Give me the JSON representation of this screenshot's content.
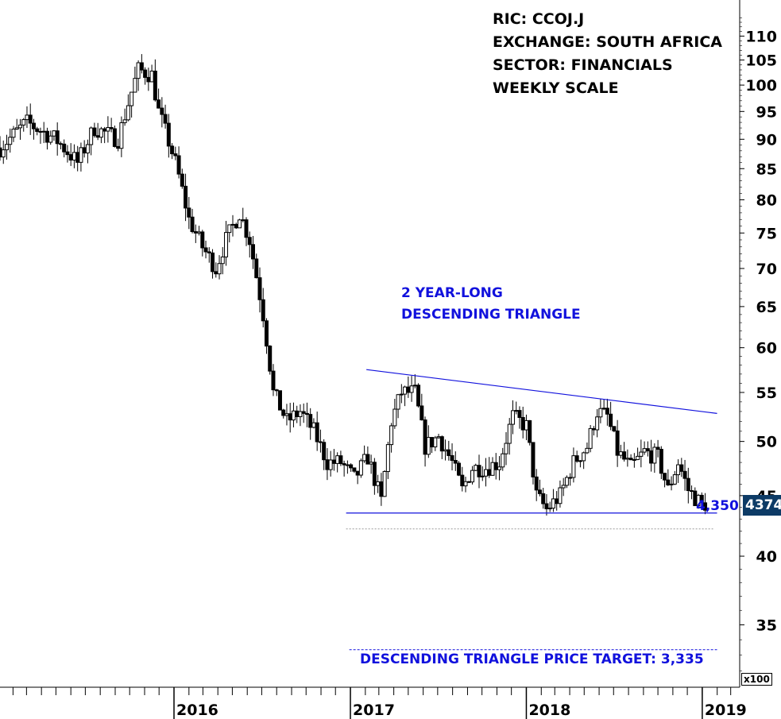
{
  "info": {
    "ric": "RIC: CCOJ.J",
    "exchange": "EXCHANGE: SOUTH AFRICA",
    "sector": "SECTOR: FINANCIALS",
    "scale": "WEEKLY SCALE"
  },
  "pattern_label": [
    "2 YEAR-LONG",
    "DESCENDING TRIANGLE"
  ],
  "support_label": "4,350",
  "target_label": "DESCENDING TRIANGLE PRICE TARGET: 3,335",
  "last_price": "4374",
  "multiplier": "x100",
  "colors": {
    "annotation": "#1111dd",
    "candle": "#000000",
    "last_price_bg": "#0d3b66"
  },
  "chart_data": {
    "type": "candlestick",
    "y_scale": "log",
    "ylim": [
      31,
      118
    ],
    "y_ticks": [
      35,
      40,
      45,
      50,
      55,
      60,
      65,
      70,
      75,
      80,
      85,
      90,
      95,
      100,
      105,
      110
    ],
    "x_ticks": [
      "2016",
      "2017",
      "2018",
      "2019"
    ],
    "x_range": [
      "2015-01-05",
      "2019-03-18"
    ],
    "close_path": [
      [
        "2015-01-05",
        88.5
      ],
      [
        "2015-03-01",
        93
      ],
      [
        "2015-05-01",
        90
      ],
      [
        "2015-06-15",
        86
      ],
      [
        "2015-07-20",
        92
      ],
      [
        "2015-09-07",
        90
      ],
      [
        "2015-10-19",
        103
      ],
      [
        "2015-11-16",
        102
      ],
      [
        "2015-11-30",
        95
      ],
      [
        "2016-01-04",
        86
      ],
      [
        "2016-02-01",
        77
      ],
      [
        "2016-02-29",
        73
      ],
      [
        "2016-03-28",
        70
      ],
      [
        "2016-04-18",
        74
      ],
      [
        "2016-05-16",
        78
      ],
      [
        "2016-06-06",
        74
      ],
      [
        "2016-07-04",
        64
      ],
      [
        "2016-07-25",
        55
      ],
      [
        "2016-08-22",
        52
      ],
      [
        "2016-09-19",
        53
      ],
      [
        "2016-10-17",
        51
      ],
      [
        "2016-11-14",
        48
      ],
      [
        "2016-12-12",
        48
      ],
      [
        "2017-01-09",
        46.5
      ],
      [
        "2017-02-06",
        48.5
      ],
      [
        "2017-03-06",
        44.5
      ],
      [
        "2017-03-27",
        52
      ],
      [
        "2017-04-17",
        55
      ],
      [
        "2017-05-15",
        55
      ],
      [
        "2017-06-05",
        49.5
      ],
      [
        "2017-07-03",
        50.5
      ],
      [
        "2017-07-31",
        48
      ],
      [
        "2017-08-21",
        45.5
      ],
      [
        "2017-09-11",
        47.5
      ],
      [
        "2017-10-09",
        47.5
      ],
      [
        "2017-11-06",
        48
      ],
      [
        "2017-12-04",
        52.5
      ],
      [
        "2018-01-01",
        51.5
      ],
      [
        "2018-01-22",
        45
      ],
      [
        "2018-02-12",
        43.8
      ],
      [
        "2018-03-12",
        45
      ],
      [
        "2018-04-09",
        48
      ],
      [
        "2018-05-07",
        49.5
      ],
      [
        "2018-05-28",
        53
      ],
      [
        "2018-06-18",
        52.5
      ],
      [
        "2018-07-09",
        49
      ],
      [
        "2018-08-06",
        47.5
      ],
      [
        "2018-09-03",
        49
      ],
      [
        "2018-10-01",
        48.5
      ],
      [
        "2018-10-22",
        45.5
      ],
      [
        "2018-11-12",
        48
      ],
      [
        "2018-12-03",
        45.5
      ],
      [
        "2018-12-24",
        44.5
      ],
      [
        "2019-01-07",
        43.74
      ]
    ],
    "trendlines": [
      {
        "kind": "resistance",
        "from": [
          "2017-02-13",
          57.5
        ],
        "to": [
          "2019-01-07",
          52.8
        ]
      },
      {
        "kind": "support",
        "from": [
          "2017-01-02",
          43.5
        ],
        "to": [
          "2019-01-07",
          43.5
        ]
      }
    ],
    "target_level": 33.35,
    "support_level": 43.5
  }
}
